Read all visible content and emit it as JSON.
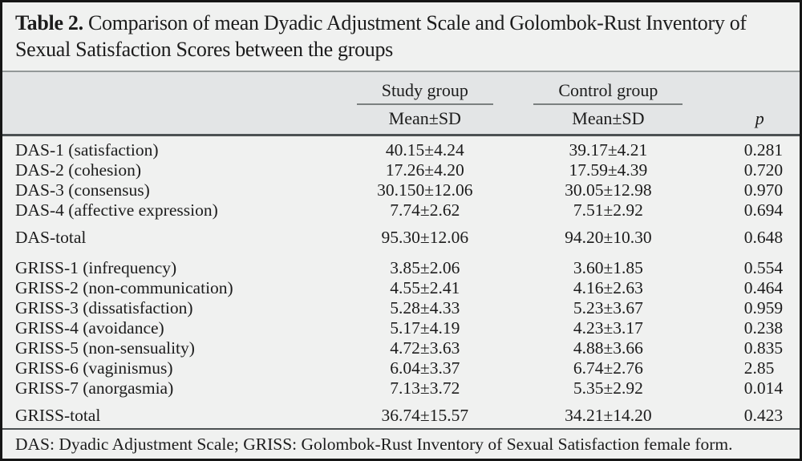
{
  "title": {
    "label": "Table 2.",
    "text": " Comparison of mean Dyadic Adjustment Scale and Golombok-Rust Inventory of Sexual Satisfaction Scores between the groups"
  },
  "header": {
    "study_group": "Study group",
    "control_group": "Control group",
    "study_mean_sd": "Mean±SD",
    "control_mean_sd": "Mean±SD",
    "p": "p"
  },
  "rows": [
    {
      "label": "DAS-1 (satisfaction)",
      "study": "40.15±4.24",
      "control": "39.17±4.21",
      "p": "0.281"
    },
    {
      "label": "DAS-2 (cohesion)",
      "study": "17.26±4.20",
      "control": "17.59±4.39",
      "p": "0.720"
    },
    {
      "label": "DAS-3 (consensus)",
      "study": "30.150±12.06",
      "control": "30.05±12.98",
      "p": "0.970"
    },
    {
      "label": "DAS-4 (affective expression)",
      "study": "7.74±2.62",
      "control": "7.51±2.92",
      "p": "0.694"
    },
    {
      "label": "DAS-total",
      "study": "95.30±12.06",
      "control": "94.20±10.30",
      "p": "0.648"
    },
    {
      "label": "GRISS-1 (infrequency)",
      "study": "3.85±2.06",
      "control": "3.60±1.85",
      "p": "0.554"
    },
    {
      "label": "GRISS-2 (non-communication)",
      "study": "4.55±2.41",
      "control": "4.16±2.63",
      "p": "0.464"
    },
    {
      "label": "GRISS-3 (dissatisfaction)",
      "study": "5.28±4.33",
      "control": "5.23±3.67",
      "p": "0.959"
    },
    {
      "label": "GRISS-4 (avoidance)",
      "study": "5.17±4.19",
      "control": "4.23±3.17",
      "p": "0.238"
    },
    {
      "label": "GRISS-5 (non-sensuality)",
      "study": "4.72±3.63",
      "control": "4.88±3.66",
      "p": "0.835"
    },
    {
      "label": "GRISS-6 (vaginismus)",
      "study": "6.04±3.37",
      "control": "6.74±2.76",
      "p": "2.85"
    },
    {
      "label": "GRISS-7 (anorgasmia)",
      "study": "7.13±3.72",
      "control": "5.35±2.92",
      "p": "0.014"
    },
    {
      "label": "GRISS-total",
      "study": "36.74±15.57",
      "control": "34.21±14.20",
      "p": "0.423"
    }
  ],
  "footnote": "DAS: Dyadic Adjustment Scale; GRISS: Golombok-Rust Inventory of Sexual Satisfaction female form.",
  "colors": {
    "paper_background": "#f0f1f0",
    "header_band": "#e3e5e6",
    "outer_border": "#161616",
    "thin_rule": "#939898",
    "dark_rule": "#4c5153",
    "text": "#1c1c1c"
  }
}
